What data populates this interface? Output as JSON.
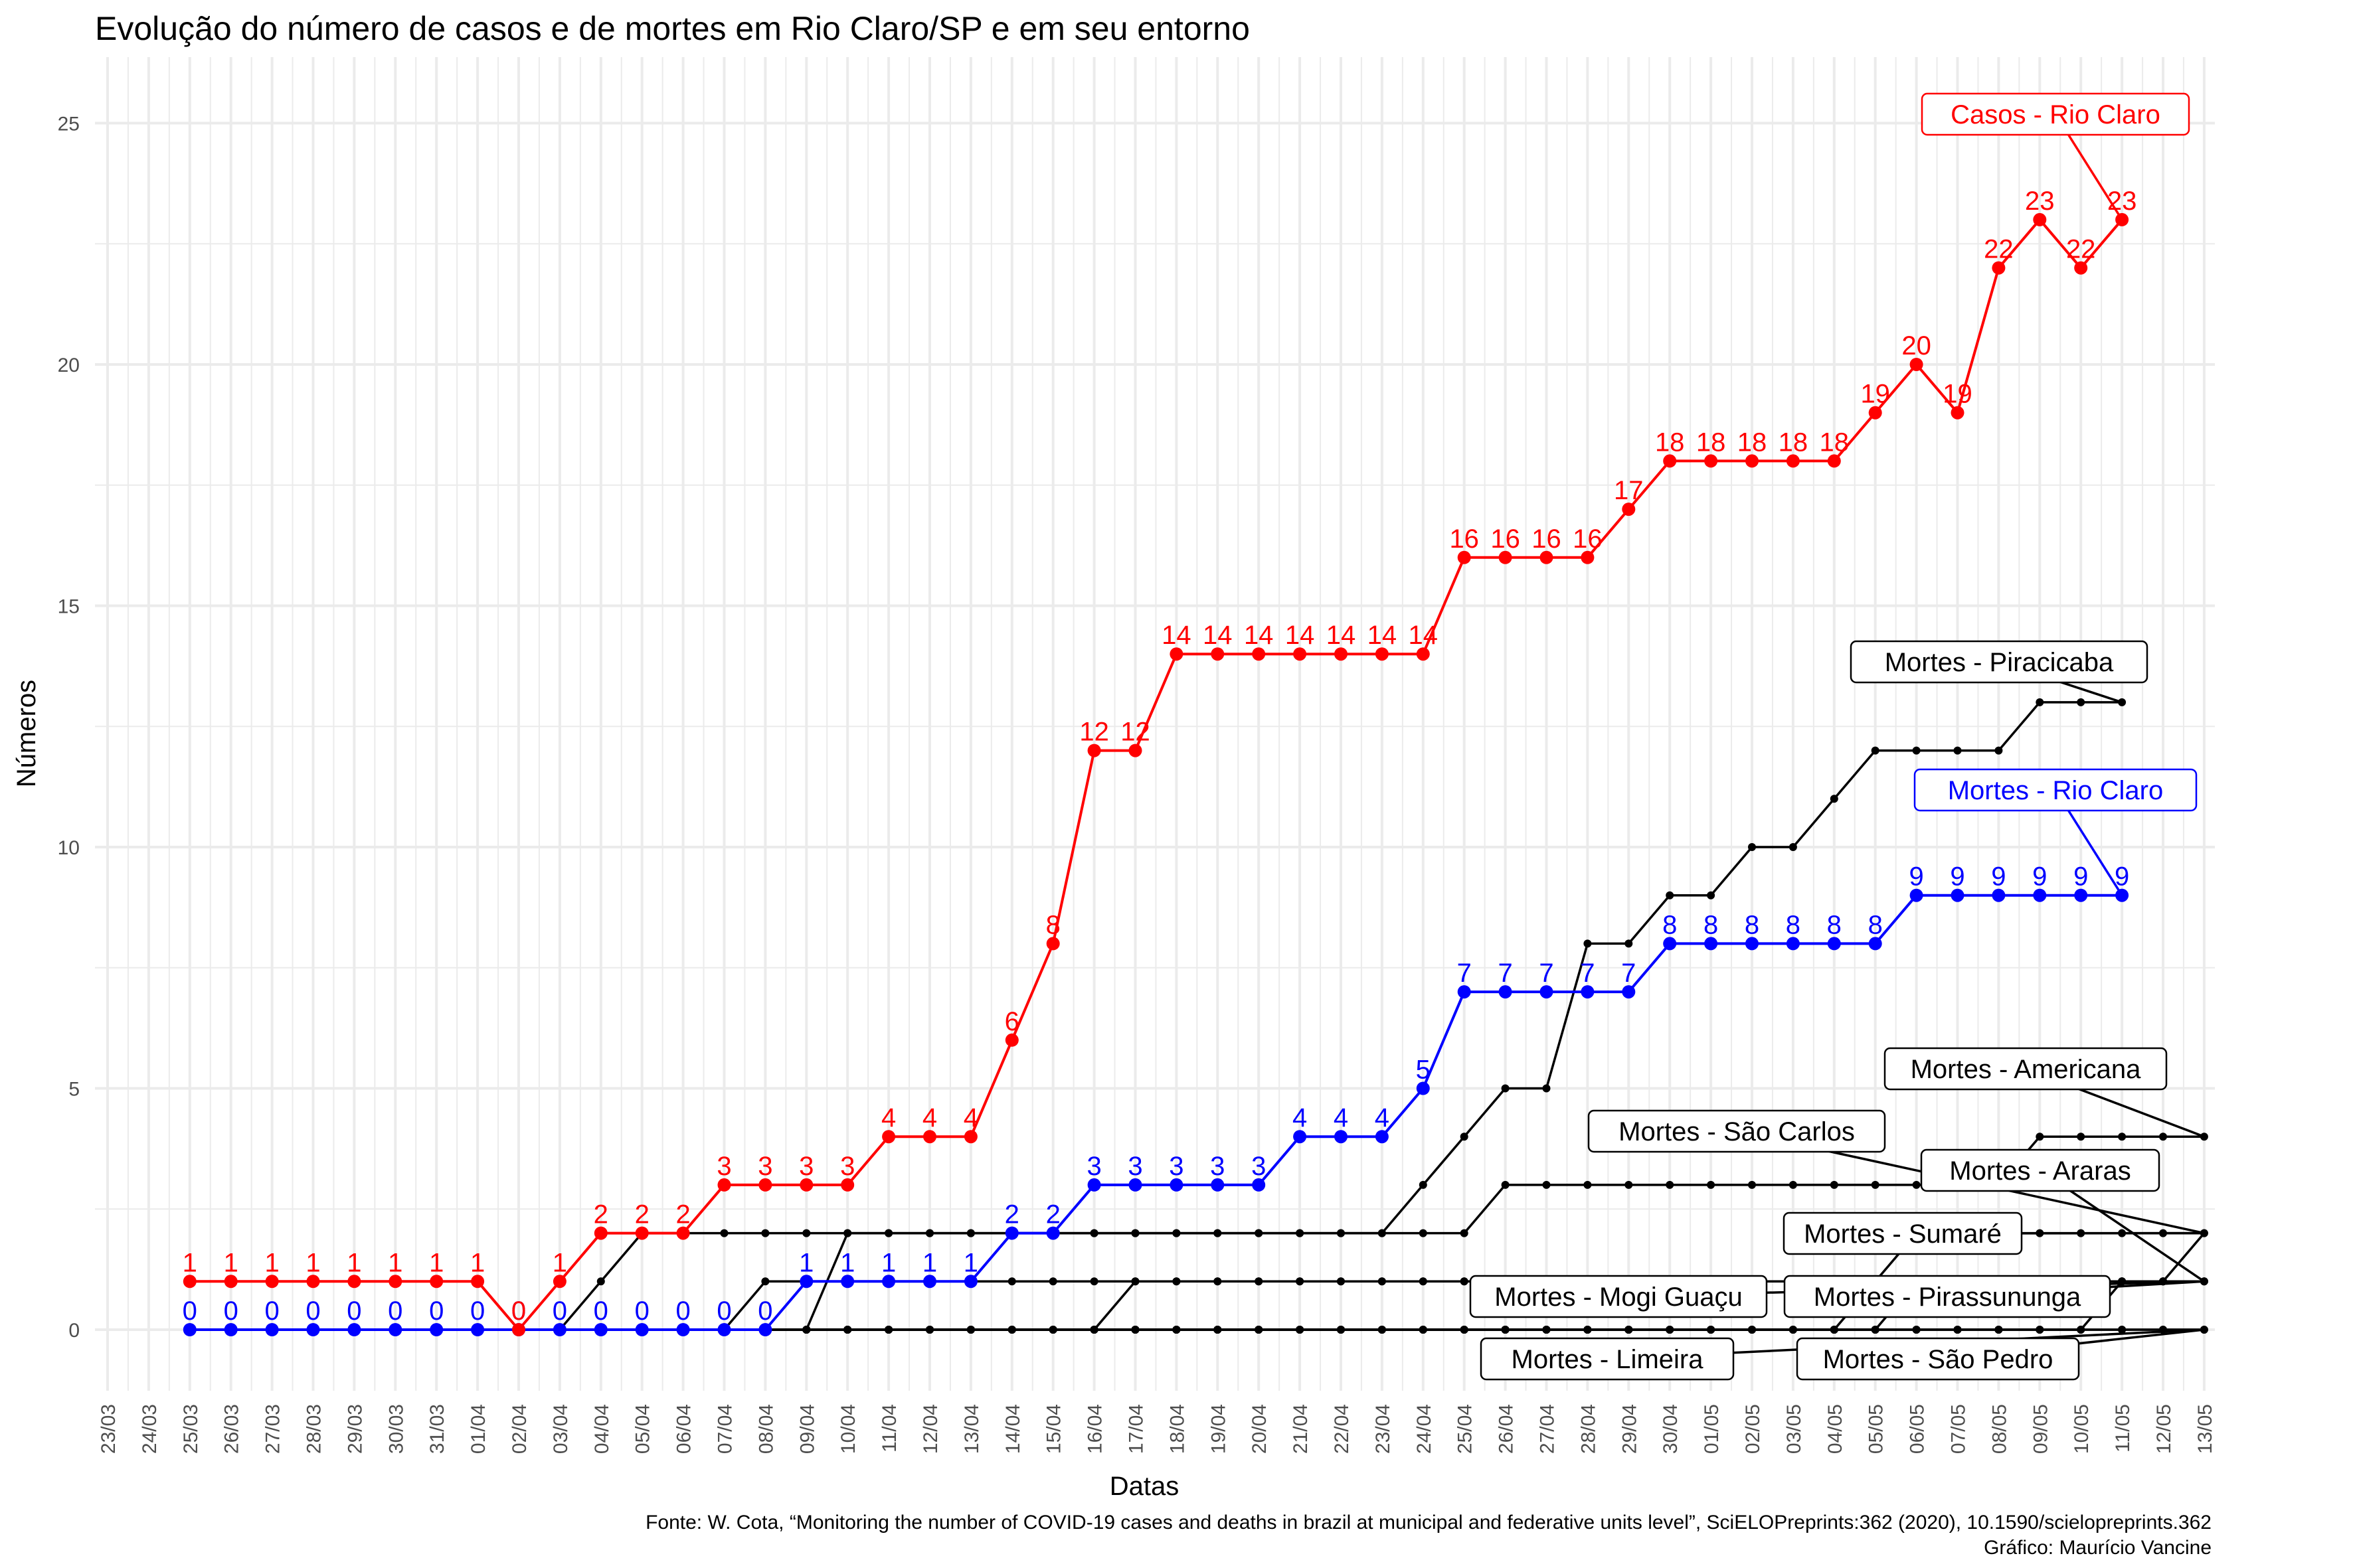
{
  "chart_data": {
    "type": "line",
    "title": "Evolução do número de casos e de mortes em Rio Claro/SP e em seu entorno",
    "xlabel": "Datas",
    "ylabel": "Números",
    "caption_lines": [
      "Fonte: W. Cota, “Monitoring the number of COVID-19 cases and deaths in brazil at municipal and federative units level”, SciELOPreprints:362 (2020), 10.1590/scielopreprints.362",
      "Gráfico: Maurício Vancine"
    ],
    "ylim": [
      -1.4,
      26.2
    ],
    "yticks": [
      0,
      5,
      10,
      15,
      20,
      25
    ],
    "grid": true,
    "x_tick_labels": [
      "23/03",
      "24/03",
      "25/03",
      "26/03",
      "27/03",
      "28/03",
      "29/03",
      "30/03",
      "31/03",
      "01/04",
      "02/04",
      "03/04",
      "04/04",
      "05/04",
      "06/04",
      "07/04",
      "08/04",
      "09/04",
      "10/04",
      "11/04",
      "12/04",
      "13/04",
      "14/04",
      "15/04",
      "16/04",
      "17/04",
      "18/04",
      "19/04",
      "20/04",
      "21/04",
      "22/04",
      "23/04",
      "24/04",
      "25/04",
      "26/04",
      "27/04",
      "28/04",
      "29/04",
      "30/04",
      "01/05",
      "02/05",
      "03/05",
      "04/05",
      "05/05",
      "06/05",
      "07/05",
      "08/05",
      "09/05",
      "10/05",
      "11/05",
      "12/05",
      "13/05"
    ],
    "series": [
      {
        "name": "Casos - Rio Claro",
        "color": "#ff0000",
        "style": "large",
        "show_values": true,
        "start_index": 2,
        "values": [
          1,
          1,
          1,
          1,
          1,
          1,
          1,
          1,
          0,
          1,
          2,
          2,
          2,
          3,
          3,
          3,
          3,
          4,
          4,
          4,
          6,
          8,
          12,
          12,
          14,
          14,
          14,
          14,
          14,
          14,
          14,
          16,
          16,
          16,
          16,
          17,
          18,
          18,
          18,
          18,
          18,
          19,
          20,
          19,
          22,
          23,
          22,
          23
        ]
      },
      {
        "name": "Mortes - Rio Claro",
        "color": "#0000ff",
        "style": "large",
        "show_values": true,
        "start_index": 2,
        "values": [
          0,
          0,
          0,
          0,
          0,
          0,
          0,
          0,
          0,
          0,
          0,
          0,
          0,
          0,
          0,
          1,
          1,
          1,
          1,
          1,
          2,
          2,
          3,
          3,
          3,
          3,
          3,
          4,
          4,
          4,
          5,
          7,
          7,
          7,
          7,
          7,
          8,
          8,
          8,
          8,
          8,
          8,
          9,
          9,
          9,
          9,
          9,
          9
        ]
      },
      {
        "name": "Mortes - Piracicaba",
        "color": "#000000",
        "style": "small",
        "show_values": false,
        "start_index": 10,
        "values": [
          0,
          0,
          1,
          2,
          2,
          2,
          2,
          2,
          2,
          2,
          2,
          2,
          2,
          2,
          2,
          2,
          2,
          2,
          2,
          2,
          2,
          2,
          3,
          4,
          5,
          5,
          8,
          8,
          9,
          9,
          10,
          10,
          11,
          12,
          12,
          12,
          12,
          13,
          13,
          13
        ]
      },
      {
        "name": "Mortes - Americana",
        "color": "#000000",
        "style": "small",
        "show_values": false,
        "start_index": 15,
        "values": [
          0,
          0,
          0,
          2,
          2,
          2,
          2,
          2,
          2,
          2,
          2,
          2,
          2,
          2,
          2,
          2,
          2,
          2,
          2,
          3,
          3,
          3,
          3,
          3,
          3,
          3,
          3,
          3,
          3,
          3,
          3,
          3,
          4,
          4,
          4,
          4,
          4
        ]
      },
      {
        "name": "Mortes - São Carlos",
        "color": "#000000",
        "style": "small",
        "show_values": false,
        "start_index": 15,
        "values": [
          0,
          1,
          1,
          1,
          1,
          1,
          1,
          1,
          1,
          1,
          1,
          1,
          1,
          1,
          1,
          1,
          1,
          1,
          1,
          1,
          1,
          1,
          1,
          1,
          1,
          1,
          1,
          1,
          1,
          1,
          1,
          1,
          1,
          1,
          1,
          1,
          2
        ]
      },
      {
        "name": "Mortes - Araras",
        "color": "#000000",
        "style": "small",
        "show_values": false,
        "start_index": 15,
        "values": [
          0,
          0,
          0,
          0,
          0,
          0,
          0,
          0,
          0,
          0,
          1,
          1,
          1,
          1,
          1,
          1,
          1,
          1,
          1,
          1,
          1,
          1,
          1,
          1,
          1,
          1,
          1,
          1,
          1,
          1,
          1,
          1,
          1,
          1,
          1,
          1,
          1
        ]
      },
      {
        "name": "Mortes - Sumaré",
        "color": "#000000",
        "style": "small",
        "show_values": false,
        "start_index": 15,
        "values": [
          0,
          0,
          0,
          0,
          0,
          0,
          0,
          0,
          0,
          0,
          0,
          0,
          0,
          0,
          0,
          0,
          0,
          0,
          0,
          0,
          0,
          0,
          0,
          0,
          0,
          0,
          0,
          0,
          1,
          2,
          2,
          2,
          2,
          2,
          2,
          2,
          2
        ]
      },
      {
        "name": "Mortes - Mogi Guaçu",
        "color": "#000000",
        "style": "small",
        "show_values": false,
        "start_index": 15,
        "values": [
          0,
          0,
          0,
          0,
          0,
          0,
          0,
          0,
          0,
          0,
          0,
          0,
          0,
          0,
          0,
          0,
          0,
          0,
          0,
          0,
          0,
          0,
          0,
          0,
          0,
          0,
          0,
          0,
          0,
          1,
          1,
          1,
          1,
          1,
          1,
          1,
          1
        ]
      },
      {
        "name": "Mortes - Pirassununga",
        "color": "#000000",
        "style": "small",
        "show_values": false,
        "start_index": 15,
        "values": [
          0,
          0,
          0,
          0,
          0,
          0,
          0,
          0,
          0,
          0,
          0,
          0,
          0,
          0,
          0,
          0,
          0,
          0,
          0,
          0,
          0,
          0,
          0,
          0,
          0,
          0,
          0,
          0,
          0,
          0,
          0,
          0,
          0,
          0,
          1,
          1,
          1
        ]
      },
      {
        "name": "Mortes - Limeira",
        "color": "#000000",
        "style": "small",
        "show_values": false,
        "start_index": 15,
        "values": [
          0,
          0,
          0,
          0,
          0,
          0,
          0,
          0,
          0,
          0,
          0,
          0,
          0,
          0,
          0,
          0,
          0,
          0,
          0,
          0,
          0,
          0,
          0,
          0,
          0,
          0,
          0,
          0,
          0,
          0,
          0,
          0,
          0,
          0,
          0,
          0,
          0
        ]
      },
      {
        "name": "Mortes - São Pedro",
        "color": "#000000",
        "style": "small",
        "show_values": false,
        "start_index": 15,
        "values": [
          0,
          0,
          0,
          0,
          0,
          0,
          0,
          0,
          0,
          0,
          0,
          0,
          0,
          0,
          0,
          0,
          0,
          0,
          0,
          0,
          0,
          0,
          0,
          0,
          0,
          0,
          0,
          0,
          0,
          0,
          0,
          0,
          0,
          0,
          0,
          0,
          0
        ]
      }
    ]
  }
}
